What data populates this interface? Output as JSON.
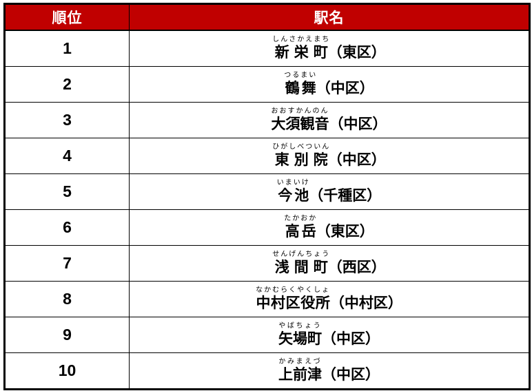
{
  "colors": {
    "header_bg": "#c00000",
    "header_text": "#ffffff",
    "border": "#000000",
    "body_text": "#000000"
  },
  "table": {
    "headers": {
      "rank": "順位",
      "station": "駅名"
    },
    "rows": [
      {
        "rank": "1",
        "furigana": "しんさかえまち",
        "station": "新栄町",
        "ward": "（東区）"
      },
      {
        "rank": "2",
        "furigana": "つるまい",
        "station": "鶴舞",
        "ward": "（中区）"
      },
      {
        "rank": "3",
        "furigana": "おおすかんのん",
        "station": "大須観音",
        "ward": "（中区）"
      },
      {
        "rank": "4",
        "furigana": "ひがしべついん",
        "station": "東別院",
        "ward": "（中区）"
      },
      {
        "rank": "5",
        "furigana": "いまいけ",
        "station": "今池",
        "ward": "（千種区）"
      },
      {
        "rank": "6",
        "furigana": "たかおか",
        "station": "高岳",
        "ward": "（東区）"
      },
      {
        "rank": "7",
        "furigana": "せんげんちょう",
        "station": "浅間町",
        "ward": "（西区）"
      },
      {
        "rank": "8",
        "furigana": "なかむらくやくしょ",
        "station": "中村区役所",
        "ward": "（中村区）"
      },
      {
        "rank": "9",
        "furigana": "やばちょう",
        "station": "矢場町",
        "ward": "（中区）"
      },
      {
        "rank": "10",
        "furigana": "かみまえづ",
        "station": "上前津",
        "ward": "（中区）"
      }
    ]
  },
  "chart_data": {
    "type": "table",
    "title": "",
    "columns": [
      "順位",
      "駅名"
    ],
    "rows": [
      [
        "1",
        "新栄町（東区）",
        "しんさかえまち"
      ],
      [
        "2",
        "鶴舞（中区）",
        "つるまい"
      ],
      [
        "3",
        "大須観音（中区）",
        "おおすかんのん"
      ],
      [
        "4",
        "東別院（中区）",
        "ひがしべついん"
      ],
      [
        "5",
        "今池（千種区）",
        "いまいけ"
      ],
      [
        "6",
        "高岳（東区）",
        "たかおか"
      ],
      [
        "7",
        "浅間町（西区）",
        "せんげんちょう"
      ],
      [
        "8",
        "中村区役所（中村区）",
        "なかむらくやくしょ"
      ],
      [
        "9",
        "矢場町（中区）",
        "やばちょう"
      ],
      [
        "10",
        "上前津（中区）",
        "かみまえづ"
      ]
    ]
  }
}
